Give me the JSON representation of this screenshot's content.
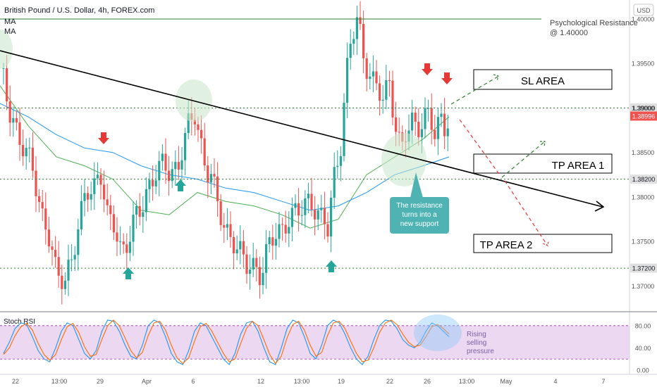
{
  "header": {
    "title": "British Pound / U.S. Dollar, 4h, FOREX.com",
    "indicator1": "MA",
    "indicator2": "MA",
    "currency": "USD"
  },
  "colors": {
    "up": "#26a69a",
    "down": "#ef5350",
    "ma_green": "#4caf50",
    "ma_blue": "#2196f3",
    "level_green": "#2e7d32",
    "trendline": "#000000",
    "arrow_red": "#e53935",
    "arrow_teal": "#26a69a",
    "rsi_k": "#2196f3",
    "rsi_d": "#ff6d00",
    "rsi_band": "#e1bee7",
    "label_bg": "#e0e0e0"
  },
  "chart_data": [
    {
      "type": "candlestick",
      "title": "British Pound / U.S. Dollar, 4h, FOREX.com",
      "x_ticks": [
        "22",
        "13:00",
        "29",
        "Apr",
        "6",
        "12",
        "13:00",
        "19",
        "22",
        "26",
        "13:00",
        "May",
        "4",
        "7"
      ],
      "y_ticks": [
        "1.37000",
        "1.37500",
        "1.38000",
        "1.38500",
        "1.39000",
        "1.39500",
        "1.40000"
      ],
      "ylim": [
        1.3675,
        1.4015
      ],
      "levels": [
        {
          "name": "Psychological Resistance @ 1.40000",
          "value": 1.4
        },
        {
          "name": "1.39000",
          "value": 1.39
        },
        {
          "name": "1.38200",
          "value": 1.382
        },
        {
          "name": "1.37200",
          "value": 1.372
        }
      ],
      "price_labels": [
        {
          "text": "1.39000",
          "value": 1.39
        },
        {
          "text": "1.38996",
          "value": 1.38996
        },
        {
          "text": "1.38200",
          "value": 1.382
        },
        {
          "text": "1.37200",
          "value": 1.372
        }
      ],
      "annotations": {
        "resistance_label": [
          "Psychological Resistance",
          "@ 1.40000"
        ],
        "boxes": [
          "SL AREA",
          "TP AREA 1",
          "TP AREA 2"
        ],
        "callout": [
          "The resistance",
          "turns into a",
          "new support"
        ]
      }
    },
    {
      "type": "line",
      "title": "Stoch RSI",
      "y_ticks": [
        "0.00",
        "40.00",
        "80.00"
      ],
      "ylim": [
        -5,
        100
      ],
      "band": [
        20,
        80
      ],
      "series": [
        {
          "values": [
            30,
            50,
            75,
            85,
            82,
            60,
            35,
            20,
            15,
            40,
            70,
            85,
            80,
            55,
            30,
            20,
            35,
            70,
            90,
            88,
            70,
            45,
            25,
            20,
            45,
            80,
            90,
            85,
            60,
            30,
            15,
            10,
            35,
            70,
            85,
            80,
            60,
            40,
            20,
            10,
            30,
            65,
            85,
            88,
            70,
            40,
            15,
            10,
            40,
            75,
            90,
            85,
            60,
            30,
            20,
            45,
            80,
            90,
            85,
            65,
            40,
            20,
            10,
            25,
            55,
            80,
            90,
            88,
            75,
            55,
            45,
            40,
            50,
            70,
            85,
            80,
            70,
            60
          ]
        },
        {
          "values": [
            28,
            40,
            62,
            78,
            84,
            72,
            48,
            28,
            18,
            28,
            55,
            78,
            84,
            68,
            42,
            25,
            28,
            55,
            80,
            90,
            80,
            58,
            35,
            22,
            32,
            62,
            85,
            88,
            72,
            45,
            22,
            12,
            22,
            52,
            78,
            84,
            70,
            50,
            30,
            15,
            20,
            48,
            75,
            88,
            80,
            55,
            28,
            12,
            25,
            58,
            82,
            88,
            72,
            45,
            25,
            32,
            62,
            85,
            88,
            75,
            52,
            30,
            15,
            18,
            40,
            68,
            85,
            90,
            82,
            65,
            50,
            42,
            45,
            60,
            78,
            82,
            75,
            65
          ]
        }
      ],
      "annotation": [
        "Rising",
        "selling",
        "pressure"
      ]
    }
  ]
}
